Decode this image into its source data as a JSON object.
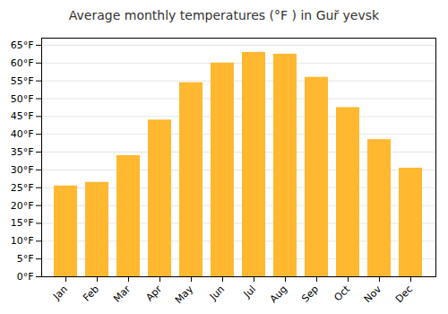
{
  "chart_data": {
    "type": "bar",
    "title": "Average monthly temperatures (°F ) in Gur̆ yevsk",
    "categories": [
      "Jan",
      "Feb",
      "Mar",
      "Apr",
      "May",
      "Jun",
      "Jul",
      "Aug",
      "Sep",
      "Oct",
      "Nov",
      "Dec"
    ],
    "values": [
      25.5,
      26.5,
      34.0,
      44.0,
      54.5,
      60.0,
      63.0,
      62.5,
      56.0,
      47.5,
      38.5,
      30.5
    ],
    "color": "#FFB830",
    "ylim": [
      0,
      67
    ],
    "yticks": [
      {
        "value": 0,
        "label": "0°F"
      },
      {
        "value": 5,
        "label": "5°F"
      },
      {
        "value": 10,
        "label": "10°F"
      },
      {
        "value": 15,
        "label": "15°F"
      },
      {
        "value": 20,
        "label": "20°F"
      },
      {
        "value": 25,
        "label": "25°F"
      },
      {
        "value": 30,
        "label": "30°F"
      },
      {
        "value": 35,
        "label": "35°F"
      },
      {
        "value": 40,
        "label": "40°F"
      },
      {
        "value": 45,
        "label": "45°F"
      },
      {
        "value": 50,
        "label": "50°F"
      },
      {
        "value": 55,
        "label": "55°F"
      },
      {
        "value": 60,
        "label": "60°F"
      },
      {
        "value": 65,
        "label": "65°F"
      }
    ],
    "grid": true
  }
}
